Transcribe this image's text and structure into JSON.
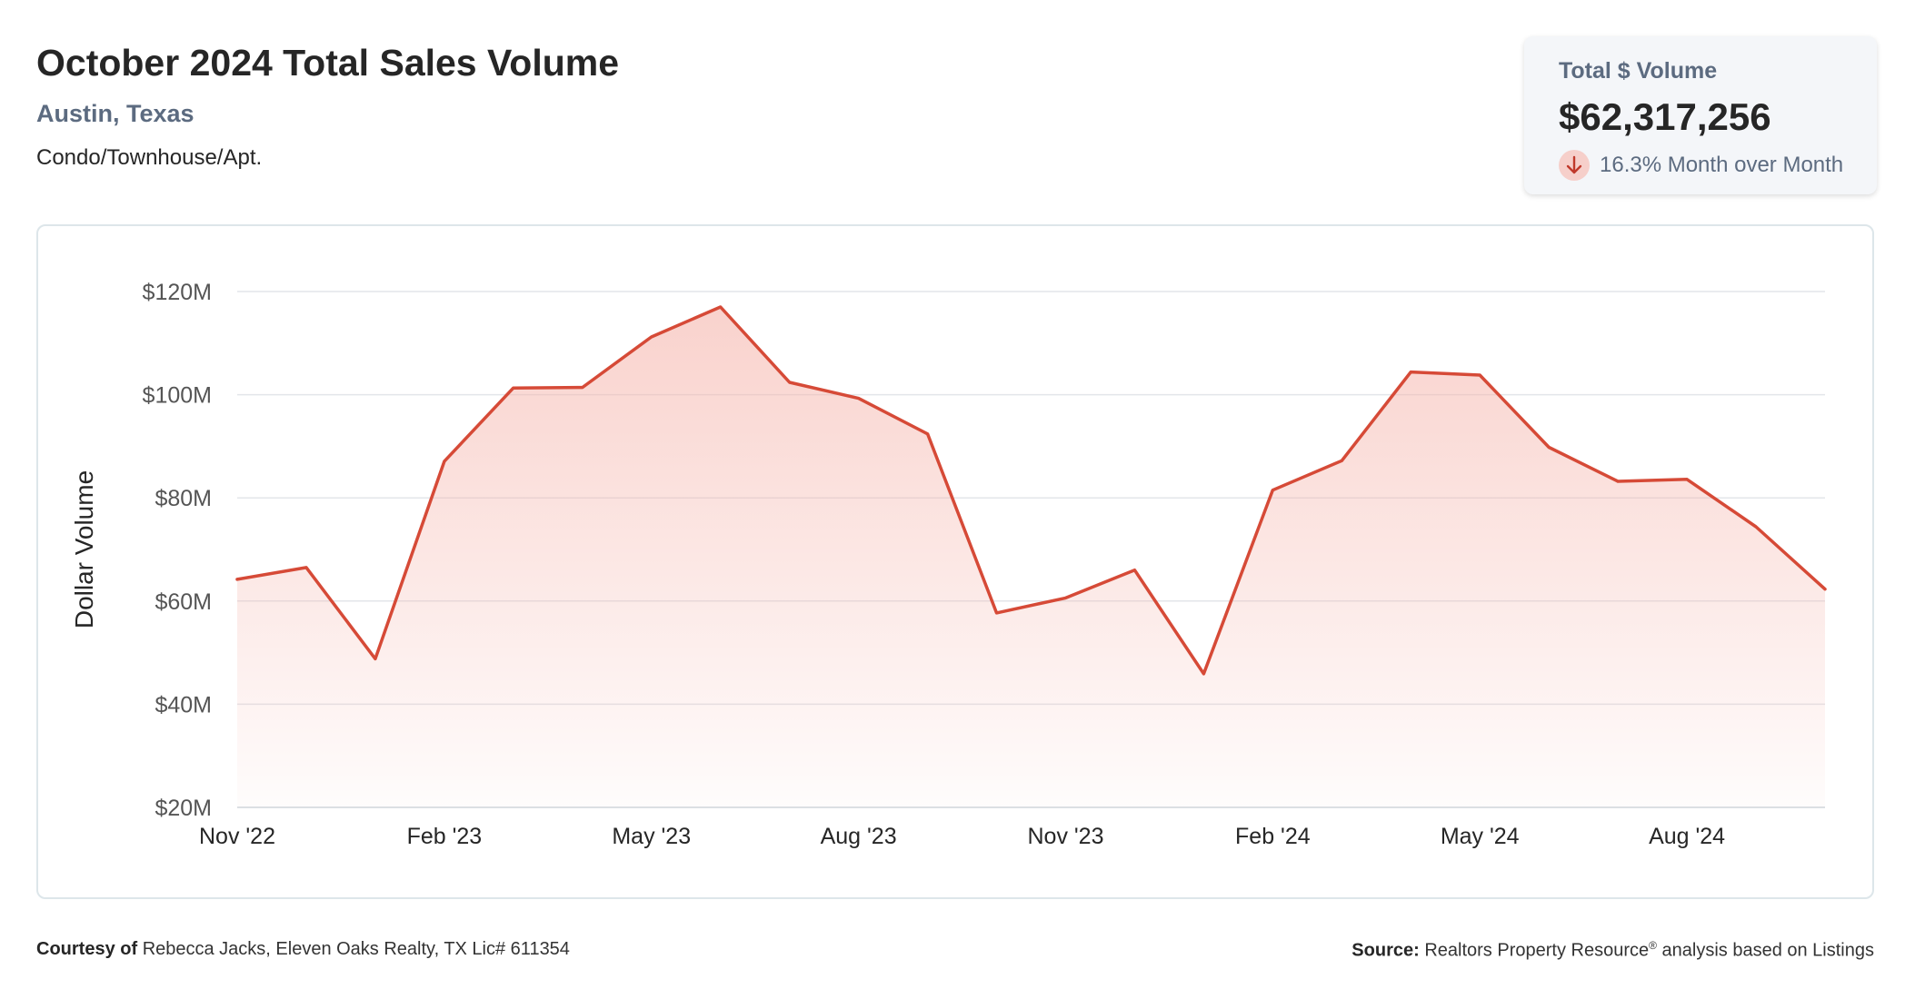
{
  "header": {
    "title": "October 2024 Total Sales Volume",
    "location": "Austin, Texas",
    "property_type": "Condo/Townhouse/Apt."
  },
  "kpi": {
    "label": "Total $ Volume",
    "value": "$62,317,256",
    "change": "16.3% Month over Month",
    "direction_icon": "arrow-down-icon"
  },
  "footer": {
    "courtesy_label": "Courtesy of",
    "courtesy_text": "Rebecca Jacks, Eleven Oaks Realty, TX Lic# 611354",
    "source_label": "Source:",
    "source_text_a": "Realtors Property Resource",
    "source_mark": "®",
    "source_text_b": " analysis based on Listings"
  },
  "chart_data": {
    "type": "area",
    "ylabel": "Dollar Volume",
    "xlabel": "",
    "ylim": [
      20,
      120
    ],
    "y_unit": "millions USD",
    "y_ticks": [
      20,
      40,
      60,
      80,
      100,
      120
    ],
    "y_tick_labels": [
      "$20M",
      "$40M",
      "$60M",
      "$80M",
      "$100M",
      "$120M"
    ],
    "x_ticks": [
      "Nov '22",
      "Feb '23",
      "May '23",
      "Aug '23",
      "Nov '23",
      "Feb '24",
      "May '24",
      "Aug '24"
    ],
    "x": [
      "Nov '22",
      "Dec '22",
      "Jan '23",
      "Feb '23",
      "Mar '23",
      "Apr '23",
      "May '23",
      "Jun '23",
      "Jul '23",
      "Aug '23",
      "Sep '23",
      "Oct '23",
      "Nov '23",
      "Dec '23",
      "Jan '24",
      "Feb '24",
      "Mar '24",
      "Apr '24",
      "May '24",
      "Jun '24",
      "Jul '24",
      "Aug '24",
      "Sep '24",
      "Oct '24"
    ],
    "series": [
      {
        "values": [
          64.2,
          66.5,
          48.8,
          87.1,
          101.3,
          101.4,
          111.2,
          117.0,
          102.4,
          99.3,
          92.4,
          57.7,
          60.6,
          66.0,
          45.9,
          81.5,
          87.2,
          104.4,
          103.8,
          89.8,
          83.2,
          83.6,
          74.4,
          62.3
        ]
      }
    ],
    "grid": true,
    "legend": "none",
    "line_color": "#d64a37",
    "fill_color": "#f5b4ab"
  }
}
